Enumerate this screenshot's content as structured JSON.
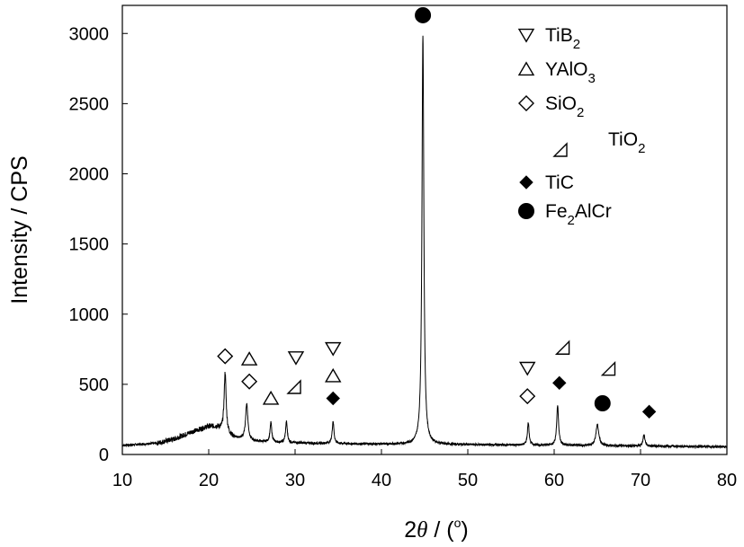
{
  "chart_data": {
    "type": "line",
    "title": "",
    "xlabel": {
      "prefix": "2",
      "var": "θ",
      "mid": " / (",
      "sup": "o",
      "suffix": ")"
    },
    "ylabel": "Intensity / CPS",
    "xlim": [
      10,
      80
    ],
    "ylim": [
      0,
      3200
    ],
    "xticks": [
      10,
      20,
      30,
      40,
      50,
      60,
      70,
      80
    ],
    "yticks": [
      0,
      500,
      1000,
      1500,
      2000,
      2500,
      3000
    ],
    "grid": false,
    "legend_position": "top-right",
    "series": [
      {
        "baseline": [
          [
            10,
            65
          ],
          [
            14,
            80
          ],
          [
            16,
            110
          ],
          [
            18,
            160
          ],
          [
            20,
            200
          ],
          [
            21,
            195
          ],
          [
            22,
            150
          ],
          [
            23,
            120
          ],
          [
            25,
            95
          ],
          [
            28,
            85
          ],
          [
            32,
            80
          ],
          [
            38,
            75
          ],
          [
            43,
            72
          ],
          [
            50,
            70
          ],
          [
            60,
            65
          ],
          [
            70,
            60
          ],
          [
            80,
            55
          ]
        ],
        "peaks": [
          {
            "x": 21.9,
            "height": 430,
            "width": 0.14
          },
          {
            "x": 24.4,
            "height": 260,
            "width": 0.16
          },
          {
            "x": 27.2,
            "height": 140,
            "width": 0.12
          },
          {
            "x": 29.0,
            "height": 150,
            "width": 0.12
          },
          {
            "x": 34.4,
            "height": 160,
            "width": 0.12
          },
          {
            "x": 44.8,
            "height": 2920,
            "width": 0.13
          },
          {
            "x": 57.0,
            "height": 160,
            "width": 0.12
          },
          {
            "x": 60.4,
            "height": 285,
            "width": 0.13
          },
          {
            "x": 65.0,
            "height": 150,
            "width": 0.2
          },
          {
            "x": 70.4,
            "height": 80,
            "width": 0.14
          }
        ]
      }
    ],
    "legend": [
      {
        "marker": "tri-down",
        "label": "TiB",
        "sub": "2"
      },
      {
        "marker": "tri-up",
        "label": "YAlO",
        "sub": "3"
      },
      {
        "marker": "diamond-open",
        "label": "SiO",
        "sub": "2"
      },
      {
        "marker": "right-tri",
        "label": "TiO",
        "sub": "2"
      },
      {
        "marker": "diamond-filled",
        "label": "TiC",
        "sub": ""
      },
      {
        "marker": "circle-filled",
        "label": "Fe",
        "sub": "2",
        "label_after": "AlCr"
      }
    ],
    "peak_markers": [
      {
        "marker": "diamond-open",
        "x": 21.9,
        "y": 700
      },
      {
        "marker": "tri-up",
        "x": 24.7,
        "y": 680
      },
      {
        "marker": "diamond-open",
        "x": 24.7,
        "y": 520
      },
      {
        "marker": "tri-up",
        "x": 27.2,
        "y": 400
      },
      {
        "marker": "tri-down",
        "x": 30.1,
        "y": 690
      },
      {
        "marker": "right-tri",
        "x": 29.9,
        "y": 480
      },
      {
        "marker": "tri-down",
        "x": 34.4,
        "y": 755
      },
      {
        "marker": "tri-up",
        "x": 34.4,
        "y": 560
      },
      {
        "marker": "diamond-filled",
        "x": 34.4,
        "y": 400
      },
      {
        "marker": "circle-filled",
        "x": 44.8,
        "y": 3130
      },
      {
        "marker": "tri-down",
        "x": 56.9,
        "y": 615
      },
      {
        "marker": "diamond-open",
        "x": 56.9,
        "y": 415
      },
      {
        "marker": "right-tri",
        "x": 61.0,
        "y": 760
      },
      {
        "marker": "diamond-filled",
        "x": 60.6,
        "y": 510
      },
      {
        "marker": "right-tri",
        "x": 66.3,
        "y": 610
      },
      {
        "marker": "circle-filled",
        "x": 65.6,
        "y": 365
      },
      {
        "marker": "diamond-filled",
        "x": 71.0,
        "y": 305
      }
    ]
  }
}
